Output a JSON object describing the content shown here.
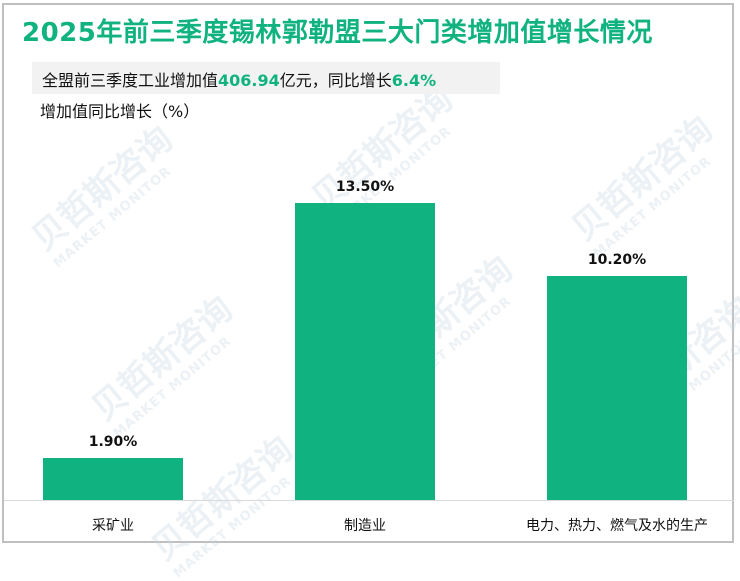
{
  "title": "2025年前三季度锡林郭勒盟三大门类增加值增长情况",
  "summary": {
    "prefix": "全盟前三季度工业增加值",
    "value": "406.94",
    "middle": "亿元，同比增长",
    "growth": "6.4%"
  },
  "y_unit_label": "增加值同比增长（%）",
  "watermark": {
    "cn": "贝哲斯咨询",
    "en": "MARKET MONITOR"
  },
  "colors": {
    "bar": "#10b37f",
    "title": "#10b37f",
    "summary_bg": "#f2f2f2",
    "border": "#bfbfbf"
  },
  "chart_data": {
    "type": "bar",
    "title": "2025年前三季度锡林郭勒盟三大门类增加值增长情况",
    "subtitle": "全盟前三季度工业增加值406.94亿元，同比增长6.4%",
    "xlabel": "",
    "ylabel": "增加值同比增长（%）",
    "categories": [
      "采矿业",
      "制造业",
      "电力、热力、燃气及水的生产"
    ],
    "values": [
      1.9,
      13.5,
      10.2
    ],
    "value_labels": [
      "1.90%",
      "13.50%",
      "10.20%"
    ],
    "ylim": [
      0,
      16
    ],
    "grid": false,
    "legend": null
  }
}
